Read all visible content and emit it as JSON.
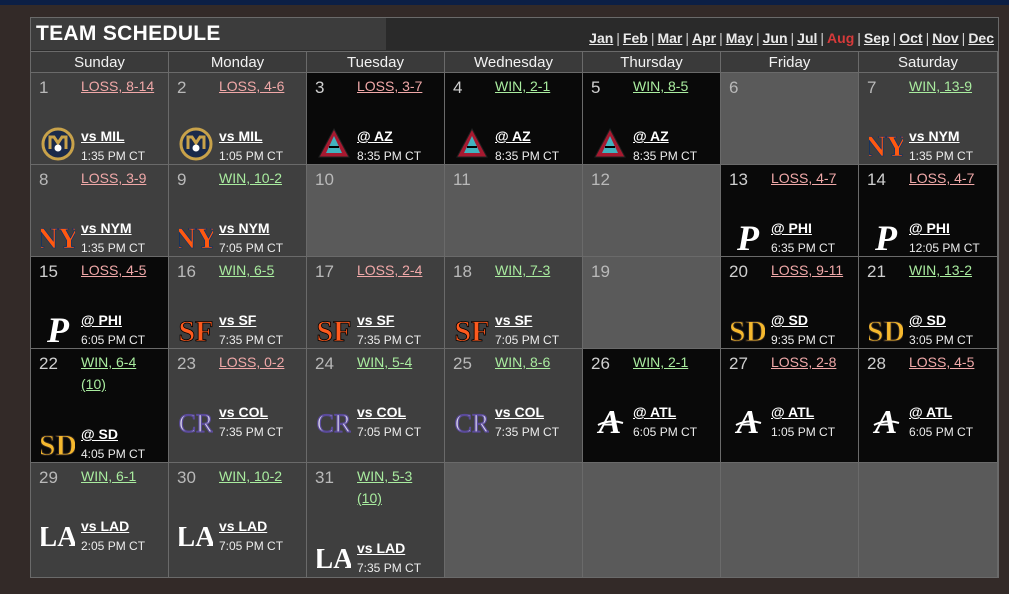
{
  "header": {
    "title": "TEAM SCHEDULE",
    "current_month": "Aug",
    "months": [
      "Jan",
      "Feb",
      "Mar",
      "Apr",
      "May",
      "Jun",
      "Jul",
      "Aug",
      "Sep",
      "Oct",
      "Nov",
      "Dec"
    ]
  },
  "weekdays": [
    "Sunday",
    "Monday",
    "Tuesday",
    "Wednesday",
    "Thursday",
    "Friday",
    "Saturday"
  ],
  "colors": {
    "win": "#a9ec9f",
    "loss": "#f0a8a8",
    "current_month": "#d63a3a"
  },
  "days": [
    {
      "num": "1",
      "result": "LOSS, 8-14",
      "outcome": "loss",
      "opponent": "vs MIL",
      "time": "1:35 PM CT",
      "logo": "brewers-logo-icon",
      "shade": "mid"
    },
    {
      "num": "2",
      "result": "LOSS, 4-6",
      "outcome": "loss",
      "opponent": "vs MIL",
      "time": "1:05 PM CT",
      "logo": "brewers-logo-icon",
      "shade": "mid"
    },
    {
      "num": "3",
      "result": "LOSS, 3-7",
      "outcome": "loss",
      "opponent": "@ AZ",
      "time": "8:35 PM CT",
      "logo": "diamondbacks-logo-icon",
      "shade": "dark"
    },
    {
      "num": "4",
      "result": "WIN, 2-1",
      "outcome": "win",
      "opponent": "@ AZ",
      "time": "8:35 PM CT",
      "logo": "diamondbacks-logo-icon",
      "shade": "dark"
    },
    {
      "num": "5",
      "result": "WIN, 8-5",
      "outcome": "win",
      "opponent": "@ AZ",
      "time": "8:35 PM CT",
      "logo": "diamondbacks-logo-icon",
      "shade": "dark"
    },
    {
      "num": "6",
      "result": "",
      "outcome": "",
      "opponent": "",
      "time": "",
      "logo": "",
      "shade": "light"
    },
    {
      "num": "7",
      "result": "WIN, 13-9",
      "outcome": "win",
      "opponent": "vs NYM",
      "time": "1:35 PM CT",
      "logo": "mets-logo-icon",
      "shade": "mid"
    },
    {
      "num": "8",
      "result": "LOSS, 3-9",
      "outcome": "loss",
      "opponent": "vs NYM",
      "time": "1:35 PM CT",
      "logo": "mets-logo-icon",
      "shade": "mid"
    },
    {
      "num": "9",
      "result": "WIN, 10-2",
      "outcome": "win",
      "opponent": "vs NYM",
      "time": "7:05 PM CT",
      "logo": "mets-logo-icon",
      "shade": "mid"
    },
    {
      "num": "10",
      "result": "",
      "outcome": "",
      "opponent": "",
      "time": "",
      "logo": "",
      "shade": "light"
    },
    {
      "num": "11",
      "result": "",
      "outcome": "",
      "opponent": "",
      "time": "",
      "logo": "",
      "shade": "light"
    },
    {
      "num": "12",
      "result": "",
      "outcome": "",
      "opponent": "",
      "time": "",
      "logo": "",
      "shade": "light"
    },
    {
      "num": "13",
      "result": "LOSS, 4-7",
      "outcome": "loss",
      "opponent": "@ PHI",
      "time": "6:35 PM CT",
      "logo": "phillies-logo-icon",
      "shade": "dark"
    },
    {
      "num": "14",
      "result": "LOSS, 4-7",
      "outcome": "loss",
      "opponent": "@ PHI",
      "time": "12:05 PM CT",
      "logo": "phillies-logo-icon",
      "shade": "dark"
    },
    {
      "num": "15",
      "result": "LOSS, 4-5",
      "outcome": "loss",
      "opponent": "@ PHI",
      "time": "6:05 PM CT",
      "logo": "phillies-logo-icon",
      "shade": "dark"
    },
    {
      "num": "16",
      "result": "WIN, 6-5",
      "outcome": "win",
      "opponent": "vs SF",
      "time": "7:35 PM CT",
      "logo": "giants-logo-icon",
      "shade": "mid"
    },
    {
      "num": "17",
      "result": "LOSS, 2-4",
      "outcome": "loss",
      "opponent": "vs SF",
      "time": "7:35 PM CT",
      "logo": "giants-logo-icon",
      "shade": "mid"
    },
    {
      "num": "18",
      "result": "WIN, 7-3",
      "outcome": "win",
      "opponent": "vs SF",
      "time": "7:05 PM CT",
      "logo": "giants-logo-icon",
      "shade": "mid"
    },
    {
      "num": "19",
      "result": "",
      "outcome": "",
      "opponent": "",
      "time": "",
      "logo": "",
      "shade": "light"
    },
    {
      "num": "20",
      "result": "LOSS, 9-11",
      "outcome": "loss",
      "opponent": "@ SD",
      "time": "9:35 PM CT",
      "logo": "padres-logo-icon",
      "shade": "dark"
    },
    {
      "num": "21",
      "result": "WIN, 13-2",
      "outcome": "win",
      "opponent": "@ SD",
      "time": "3:05 PM CT",
      "logo": "padres-logo-icon",
      "shade": "dark"
    },
    {
      "num": "22",
      "result": "WIN, 6-4",
      "extra": "(10)",
      "outcome": "win",
      "opponent": "@ SD",
      "time": "4:05 PM CT",
      "logo": "padres-logo-icon",
      "shade": "dark"
    },
    {
      "num": "23",
      "result": "LOSS, 0-2",
      "outcome": "loss",
      "opponent": "vs COL",
      "time": "7:35 PM CT",
      "logo": "rockies-logo-icon",
      "shade": "mid"
    },
    {
      "num": "24",
      "result": "WIN, 5-4",
      "outcome": "win",
      "opponent": "vs COL",
      "time": "7:05 PM CT",
      "logo": "rockies-logo-icon",
      "shade": "mid"
    },
    {
      "num": "25",
      "result": "WIN, 8-6",
      "outcome": "win",
      "opponent": "vs COL",
      "time": "7:35 PM CT",
      "logo": "rockies-logo-icon",
      "shade": "mid"
    },
    {
      "num": "26",
      "result": "WIN, 2-1",
      "outcome": "win",
      "opponent": "@ ATL",
      "time": "6:05 PM CT",
      "logo": "braves-logo-icon",
      "shade": "dark"
    },
    {
      "num": "27",
      "result": "LOSS, 2-8",
      "outcome": "loss",
      "opponent": "@ ATL",
      "time": "1:05 PM CT",
      "logo": "braves-logo-icon",
      "shade": "dark"
    },
    {
      "num": "28",
      "result": "LOSS, 4-5",
      "outcome": "loss",
      "opponent": "@ ATL",
      "time": "6:05 PM CT",
      "logo": "braves-logo-icon",
      "shade": "dark"
    },
    {
      "num": "29",
      "result": "WIN, 6-1",
      "outcome": "win",
      "opponent": "vs LAD",
      "time": "2:05 PM CT",
      "logo": "dodgers-logo-icon",
      "shade": "mid"
    },
    {
      "num": "30",
      "result": "WIN, 10-2",
      "outcome": "win",
      "opponent": "vs LAD",
      "time": "7:05 PM CT",
      "logo": "dodgers-logo-icon",
      "shade": "mid"
    },
    {
      "num": "31",
      "result": "WIN, 5-3",
      "extra": "(10)",
      "outcome": "win",
      "opponent": "vs LAD",
      "time": "7:35 PM CT",
      "logo": "dodgers-logo-icon",
      "shade": "mid"
    },
    {
      "num": "",
      "result": "",
      "outcome": "",
      "opponent": "",
      "time": "",
      "logo": "",
      "shade": "light"
    },
    {
      "num": "",
      "result": "",
      "outcome": "",
      "opponent": "",
      "time": "",
      "logo": "",
      "shade": "light"
    },
    {
      "num": "",
      "result": "",
      "outcome": "",
      "opponent": "",
      "time": "",
      "logo": "",
      "shade": "light"
    },
    {
      "num": "",
      "result": "",
      "outcome": "",
      "opponent": "",
      "time": "",
      "logo": "",
      "shade": "light"
    }
  ]
}
